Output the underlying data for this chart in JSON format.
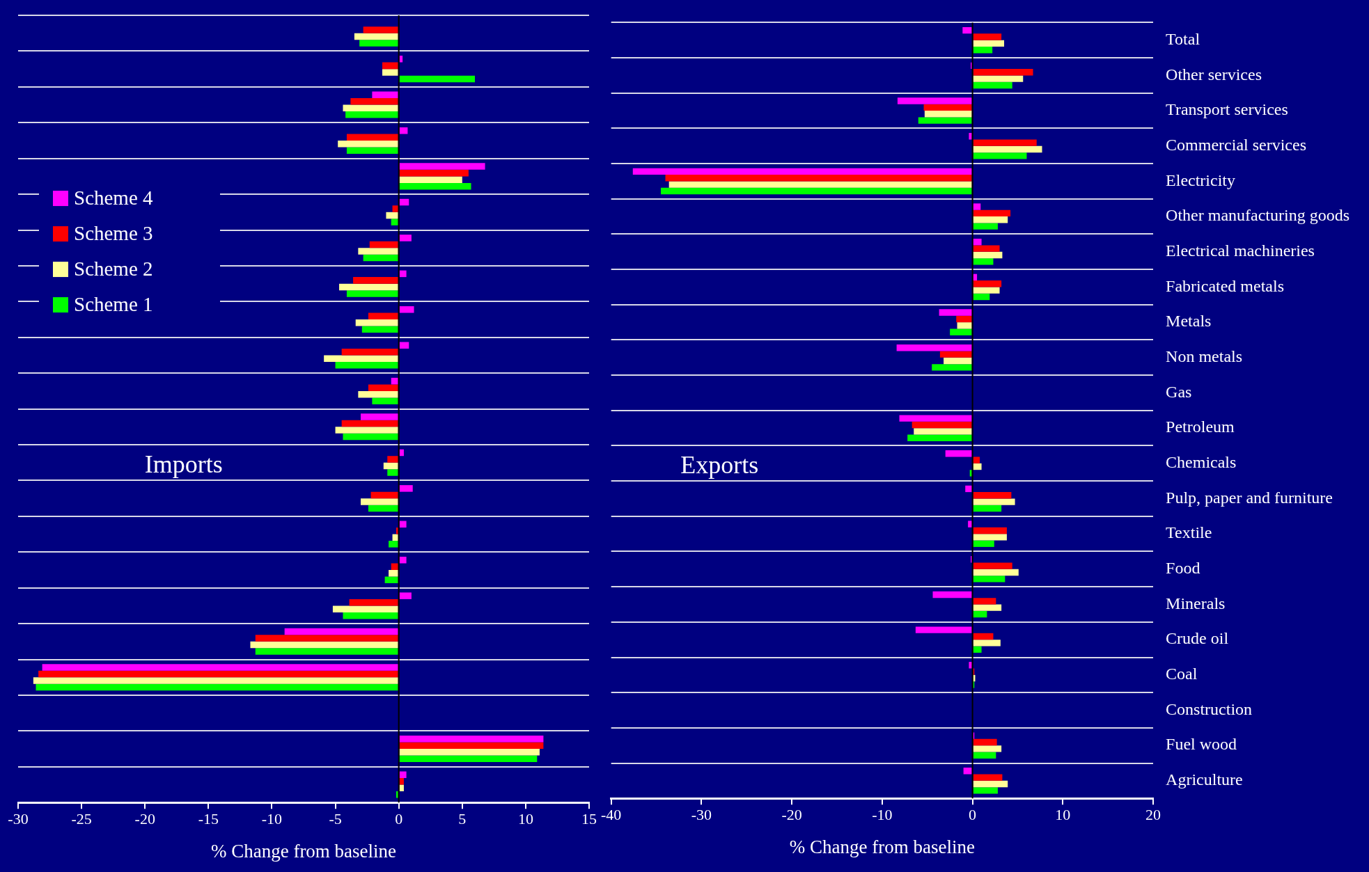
{
  "chart_data": [
    {
      "type": "bar",
      "orientation": "horizontal",
      "xlabel": "% Change from baseline",
      "annotations": [
        "Imports"
      ],
      "categories": [
        null,
        null,
        null,
        null,
        null,
        null,
        null,
        null,
        null,
        null,
        null,
        null,
        null,
        null,
        null,
        null,
        null,
        null,
        null,
        null,
        null,
        null
      ],
      "series": [
        {
          "name": "Scheme 4",
          "color": "#ff00ff",
          "values": [
            null,
            0.3,
            -2.1,
            0.7,
            6.8,
            0.8,
            1.0,
            0.6,
            1.2,
            0.8,
            -0.6,
            -3.0,
            0.4,
            1.1,
            0.6,
            0.6,
            1.0,
            -9.0,
            -28.1,
            null,
            11.4,
            0.6
          ]
        },
        {
          "name": "Scheme 3",
          "color": "#ff0000",
          "values": [
            -2.8,
            -1.3,
            -3.8,
            -4.1,
            5.5,
            -0.5,
            -2.3,
            -3.6,
            -2.4,
            -4.5,
            -2.4,
            -4.5,
            -0.9,
            -2.2,
            -0.2,
            -0.6,
            -3.9,
            -11.3,
            -28.4,
            null,
            11.4,
            0.4
          ]
        },
        {
          "name": "Scheme 2",
          "color": "#ffff99",
          "values": [
            -3.5,
            -1.3,
            -4.4,
            -4.8,
            5.0,
            -1.0,
            -3.2,
            -4.7,
            -3.4,
            -5.9,
            -3.2,
            -5.0,
            -1.2,
            -3.0,
            -0.5,
            -0.8,
            -5.2,
            -11.7,
            -28.8,
            null,
            11.1,
            0.4
          ]
        },
        {
          "name": "Scheme 1",
          "color": "#00ff00",
          "values": [
            -3.1,
            6.0,
            -4.2,
            -4.1,
            5.7,
            -0.6,
            -2.8,
            -4.1,
            -2.9,
            -5.0,
            -2.1,
            -4.4,
            -0.9,
            -2.4,
            -0.8,
            -1.1,
            -4.4,
            -11.3,
            -28.6,
            null,
            10.9,
            -0.2
          ]
        }
      ],
      "xlim": [
        -30,
        15
      ],
      "xticks": [
        -30,
        -25,
        -20,
        -15,
        -10,
        -5,
        0,
        5,
        10,
        15
      ],
      "tick_labels": "x",
      "grid": "y",
      "legend": "left",
      "ref_lines": [
        {
          "axis": "x",
          "value": 0,
          "color": "#000000"
        }
      ]
    },
    {
      "type": "bar",
      "orientation": "horizontal",
      "xlabel": "% Change from baseline",
      "annotations": [
        "Exports"
      ],
      "categories": [
        "Total",
        "Other services",
        "Transport services",
        "Commercial services",
        "Electricity",
        "Other manufacturing goods",
        "Electrical machineries",
        "Fabricated metals",
        "Metals",
        "Non metals",
        "Gas",
        "Petroleum",
        "Chemicals",
        "Pulp, paper and furniture",
        "Textile",
        "Food",
        "Minerals",
        "Crude oil",
        "Coal",
        "Construction",
        "Fuel wood",
        "Agriculture"
      ],
      "series": [
        {
          "color": "#ff00ff",
          "values": [
            -1.1,
            -0.2,
            -8.3,
            -0.4,
            -37.6,
            0.9,
            1.0,
            0.5,
            -3.7,
            -8.4,
            null,
            -8.1,
            -3.0,
            -0.8,
            -0.5,
            -0.2,
            -4.4,
            -6.3,
            -0.4,
            null,
            0.2,
            -1.0
          ]
        },
        {
          "color": "#ff0000",
          "values": [
            3.2,
            6.7,
            -5.4,
            7.1,
            -34.0,
            4.2,
            3.0,
            3.2,
            -1.8,
            -3.6,
            null,
            -6.7,
            0.8,
            4.3,
            3.8,
            4.4,
            2.6,
            2.3,
            0.2,
            null,
            2.7,
            3.3
          ]
        },
        {
          "color": "#ffff99",
          "values": [
            3.5,
            5.6,
            -5.3,
            7.7,
            -33.6,
            3.9,
            3.3,
            3.0,
            -1.7,
            -3.2,
            null,
            -6.5,
            1.0,
            4.7,
            3.8,
            5.1,
            3.2,
            3.1,
            0.3,
            null,
            3.2,
            3.9
          ]
        },
        {
          "color": "#00ff00",
          "values": [
            2.2,
            4.4,
            -6.0,
            6.0,
            -34.5,
            2.8,
            2.3,
            1.9,
            -2.5,
            -4.5,
            null,
            -7.2,
            -0.3,
            3.2,
            2.4,
            3.6,
            1.6,
            1.0,
            0.2,
            null,
            2.6,
            2.8
          ]
        }
      ],
      "xlim": [
        -40,
        20
      ],
      "xticks": [
        -40,
        -30,
        -20,
        -10,
        0,
        10,
        20
      ],
      "grid": "y",
      "ref_lines": [
        {
          "axis": "x",
          "value": 0,
          "color": "#000000"
        }
      ]
    }
  ]
}
